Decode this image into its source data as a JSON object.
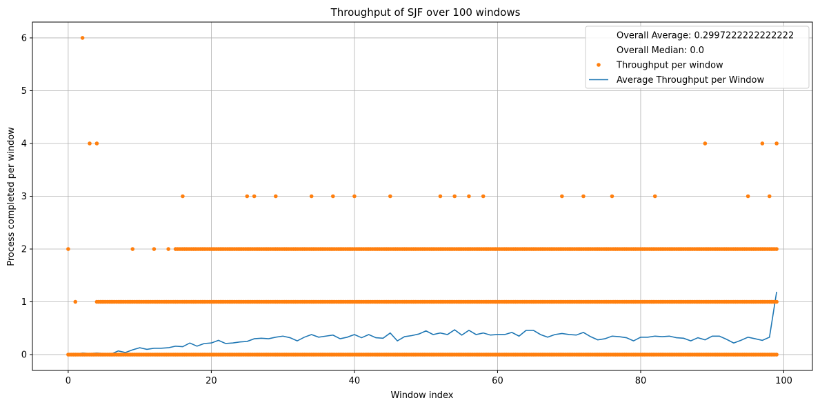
{
  "chart_data": {
    "type": "scatter",
    "title": "Throughput of SJF over 100 windows",
    "xlabel": "Window index",
    "ylabel": "Process completed per window",
    "xlim": [
      -5,
      104
    ],
    "ylim": [
      -0.3,
      6.3
    ],
    "xticks": [
      0,
      20,
      40,
      60,
      80,
      100
    ],
    "yticks": [
      0,
      1,
      2,
      3,
      4,
      5,
      6
    ],
    "grid": true,
    "legend_position": "top-right",
    "colors": {
      "scatter": "#ff7f0e",
      "line": "#1f77b4",
      "grid": "#b0b0b0"
    },
    "legend": [
      {
        "kind": "text",
        "label": "Overall Average: 0.2997222222222222"
      },
      {
        "kind": "text",
        "label": "Overall Median: 0.0"
      },
      {
        "kind": "marker",
        "label": "Throughput per window"
      },
      {
        "kind": "line",
        "label": "Average Throughput per Window"
      }
    ],
    "scatter_levels": [
      {
        "y": 0,
        "x_from": 0,
        "x_to": 99
      },
      {
        "y": 1,
        "x": [
          1
        ],
        "x_from": 4,
        "x_to": 99
      },
      {
        "y": 2,
        "x": [
          0,
          9,
          12,
          14
        ],
        "x_from": 15,
        "x_to": 99
      }
    ],
    "scatter_points": [
      {
        "x": 2,
        "y": 6
      },
      {
        "x": 3,
        "y": 4
      },
      {
        "x": 4,
        "y": 4
      },
      {
        "x": 89,
        "y": 4
      },
      {
        "x": 97,
        "y": 4
      },
      {
        "x": 99,
        "y": 4
      },
      {
        "x": 16,
        "y": 3
      },
      {
        "x": 25,
        "y": 3
      },
      {
        "x": 26,
        "y": 3
      },
      {
        "x": 29,
        "y": 3
      },
      {
        "x": 34,
        "y": 3
      },
      {
        "x": 37,
        "y": 3
      },
      {
        "x": 40,
        "y": 3
      },
      {
        "x": 45,
        "y": 3
      },
      {
        "x": 52,
        "y": 3
      },
      {
        "x": 54,
        "y": 3
      },
      {
        "x": 56,
        "y": 3
      },
      {
        "x": 58,
        "y": 3
      },
      {
        "x": 69,
        "y": 3
      },
      {
        "x": 72,
        "y": 3
      },
      {
        "x": 76,
        "y": 3
      },
      {
        "x": 82,
        "y": 3
      },
      {
        "x": 95,
        "y": 3
      },
      {
        "x": 98,
        "y": 3
      }
    ],
    "series": [
      {
        "name": "Average Throughput per Window",
        "values": [
          0.0,
          0.0,
          0.03,
          0.02,
          0.03,
          0.02,
          0.01,
          0.07,
          0.04,
          0.09,
          0.13,
          0.1,
          0.12,
          0.12,
          0.13,
          0.16,
          0.15,
          0.22,
          0.16,
          0.21,
          0.22,
          0.27,
          0.21,
          0.22,
          0.24,
          0.25,
          0.3,
          0.31,
          0.3,
          0.33,
          0.35,
          0.32,
          0.26,
          0.33,
          0.38,
          0.33,
          0.35,
          0.37,
          0.3,
          0.33,
          0.38,
          0.32,
          0.38,
          0.32,
          0.31,
          0.41,
          0.26,
          0.34,
          0.36,
          0.39,
          0.45,
          0.38,
          0.41,
          0.38,
          0.47,
          0.37,
          0.46,
          0.38,
          0.41,
          0.37,
          0.38,
          0.38,
          0.42,
          0.35,
          0.46,
          0.46,
          0.38,
          0.33,
          0.38,
          0.4,
          0.38,
          0.37,
          0.42,
          0.34,
          0.28,
          0.3,
          0.35,
          0.34,
          0.32,
          0.26,
          0.33,
          0.33,
          0.35,
          0.34,
          0.35,
          0.32,
          0.31,
          0.26,
          0.32,
          0.28,
          0.35,
          0.35,
          0.29,
          0.22,
          0.27,
          0.33,
          0.3,
          0.27,
          0.33,
          1.19
        ]
      }
    ]
  }
}
